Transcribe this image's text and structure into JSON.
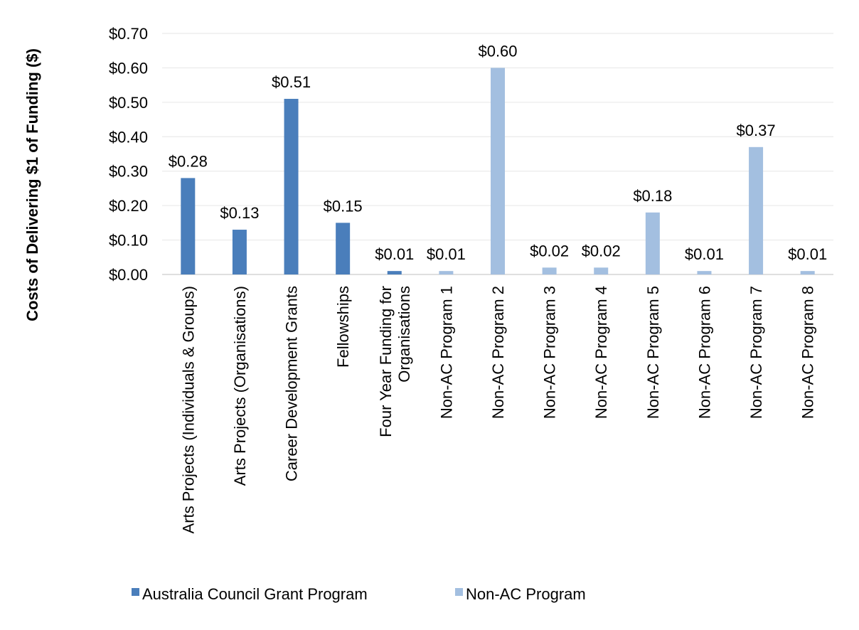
{
  "chart_data": {
    "type": "bar",
    "title": "",
    "xlabel": "",
    "ylabel": "Costs of Delivering $1 of Funding ($)",
    "ylim": [
      0,
      0.7
    ],
    "yticks": [
      "$0.00",
      "$0.10",
      "$0.20",
      "$0.30",
      "$0.40",
      "$0.50",
      "$0.60",
      "$0.70"
    ],
    "grid": true,
    "legend_position": "bottom",
    "categories": [
      "Arts Projects (Individuals & Groups)",
      "Arts Projects (Organisations)",
      "Career Development Grants",
      "Fellowships",
      "Four Year Funding for Organisations",
      "Non-AC Program 1",
      "Non-AC Program 2",
      "Non-AC Program 3",
      "Non-AC Program 4",
      "Non-AC Program 5",
      "Non-AC Program 6",
      "Non-AC Program 7",
      "Non-AC Program 8"
    ],
    "category_lines": [
      [
        "Arts Projects (Individuals & Groups)"
      ],
      [
        "Arts Projects (Organisations)"
      ],
      [
        "Career Development Grants"
      ],
      [
        "Fellowships"
      ],
      [
        "Four Year Funding for",
        "Organisations"
      ],
      [
        "Non-AC Program 1"
      ],
      [
        "Non-AC Program 2"
      ],
      [
        "Non-AC Program 3"
      ],
      [
        "Non-AC Program 4"
      ],
      [
        "Non-AC Program 5"
      ],
      [
        "Non-AC Program 6"
      ],
      [
        "Non-AC Program 7"
      ],
      [
        "Non-AC Program 8"
      ]
    ],
    "series": [
      {
        "name": "Australia Council Grant Program",
        "color": "#4a7ebb",
        "values": [
          0.28,
          0.13,
          0.51,
          0.15,
          0.01,
          null,
          null,
          null,
          null,
          null,
          null,
          null,
          null
        ],
        "labels": [
          "$0.28",
          "$0.13",
          "$0.51",
          "$0.15",
          "$0.01",
          null,
          null,
          null,
          null,
          null,
          null,
          null,
          null
        ]
      },
      {
        "name": "Non-AC Program",
        "color": "#a3bfe0",
        "values": [
          null,
          null,
          null,
          null,
          null,
          0.01,
          0.6,
          0.02,
          0.02,
          0.18,
          0.01,
          0.37,
          0.01
        ],
        "labels": [
          null,
          null,
          null,
          null,
          null,
          "$0.01",
          "$0.60",
          "$0.02",
          "$0.02",
          "$0.18",
          "$0.01",
          "$0.37",
          "$0.01"
        ]
      }
    ]
  }
}
